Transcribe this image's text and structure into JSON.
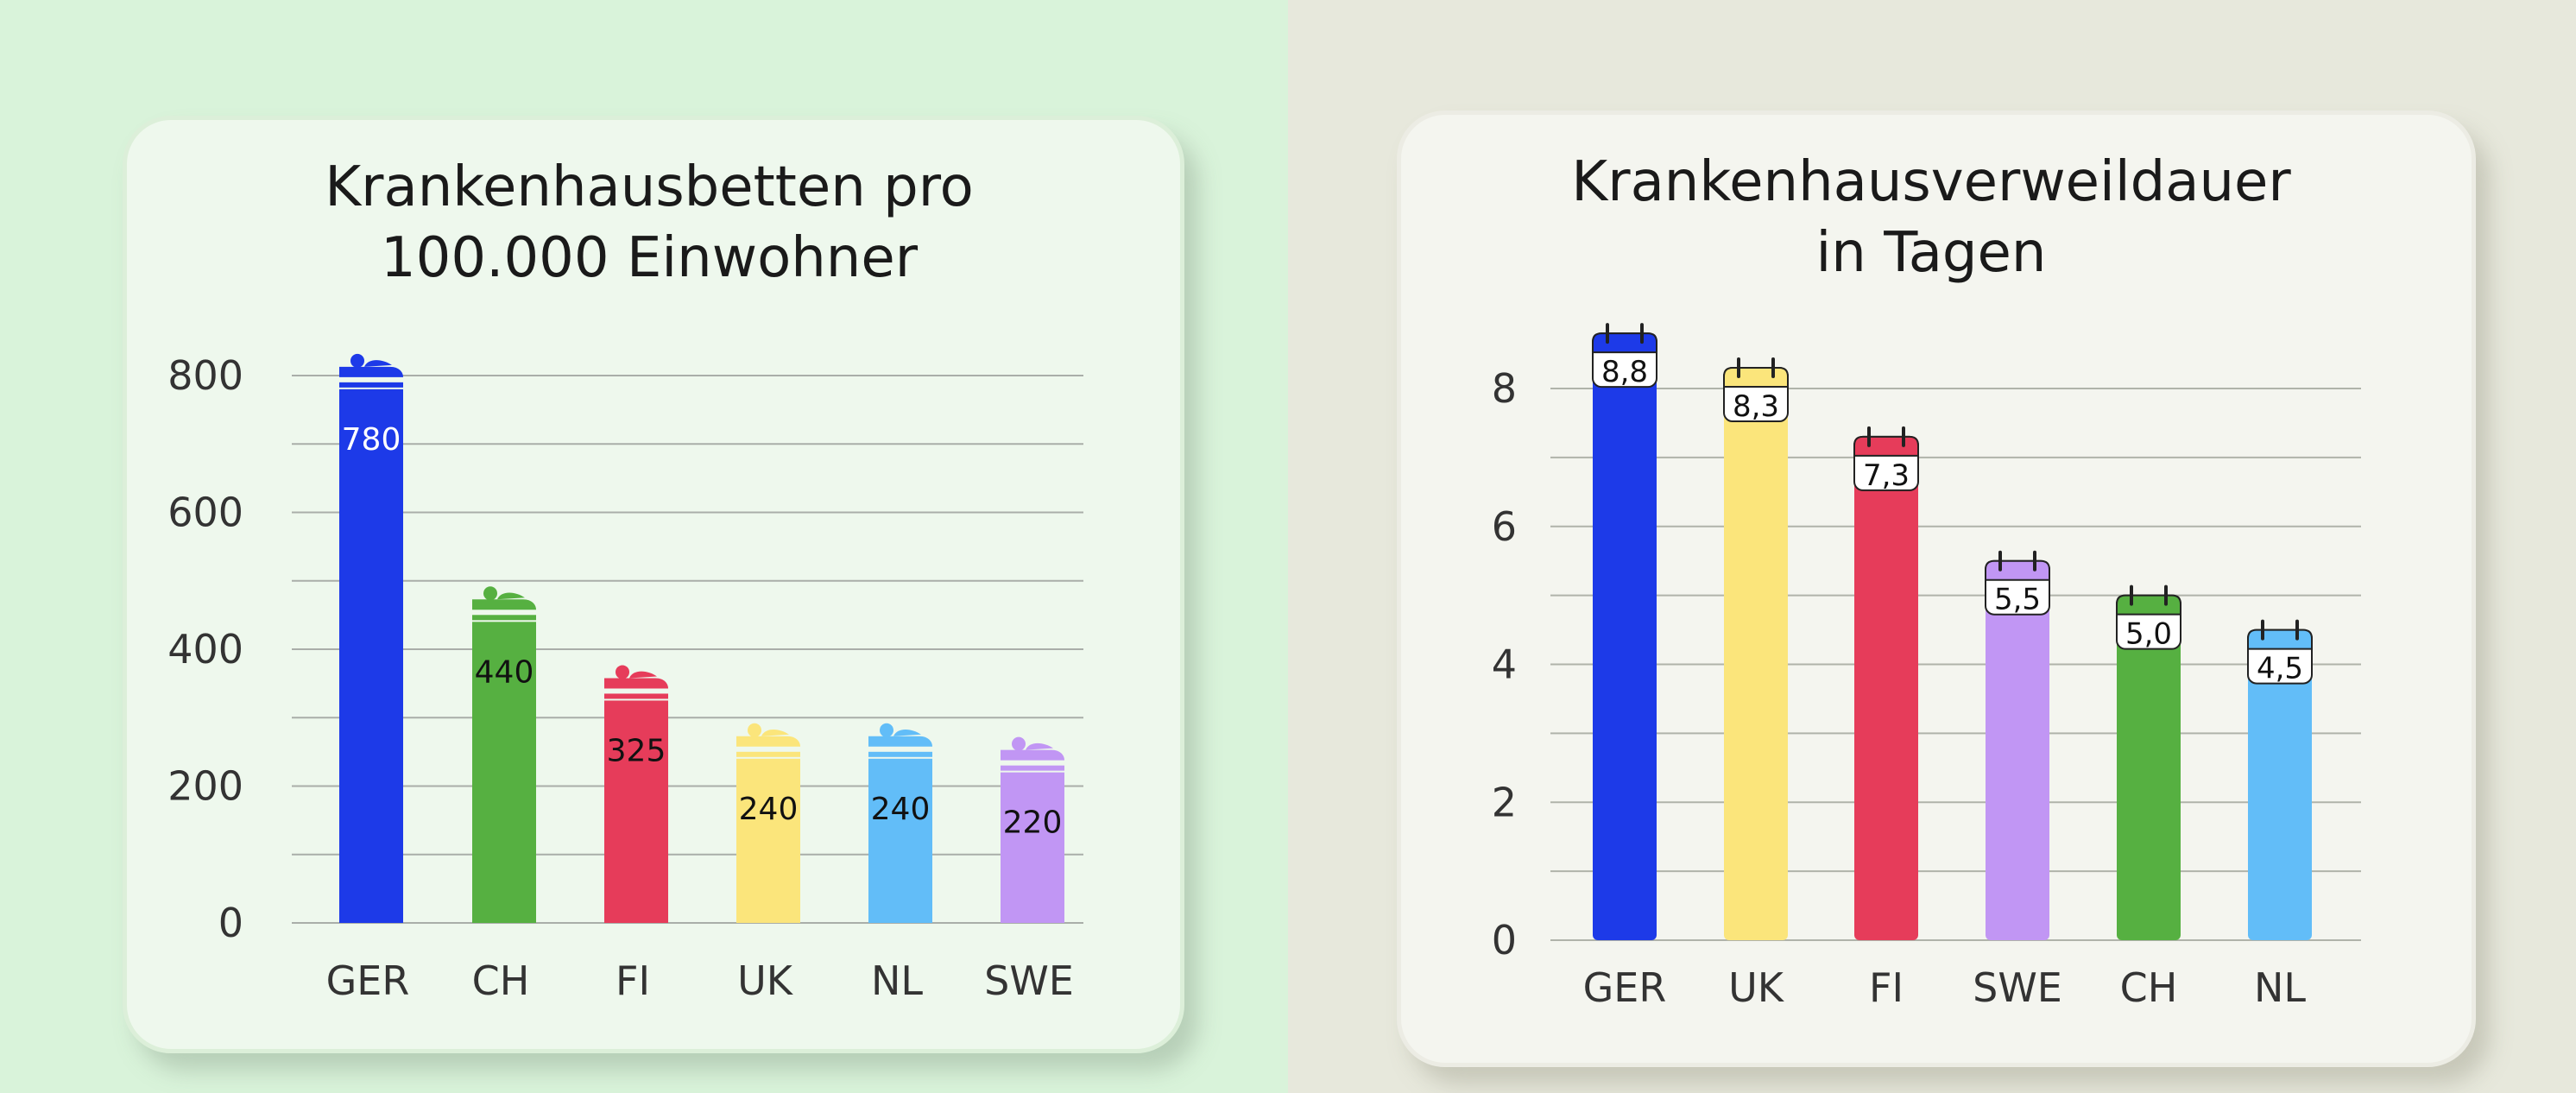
{
  "chart_data": [
    {
      "type": "bar",
      "title": [
        "Krankenhausbetten pro",
        "100.000 Einwohner"
      ],
      "categories": [
        "GER",
        "CH",
        "FI",
        "UK",
        "NL",
        "SWE"
      ],
      "values": [
        780,
        440,
        325,
        240,
        240,
        220
      ],
      "value_labels": [
        "780",
        "440",
        "325",
        "240",
        "240",
        "220"
      ],
      "colors": [
        "#1d3ae8",
        "#56b041",
        "#e63c5a",
        "#fbe57b",
        "#62bdf8",
        "#c196f4"
      ],
      "label_colors": [
        "#ffffff",
        "#111111",
        "#111111",
        "#111111",
        "#111111",
        "#111111"
      ],
      "yticks": [
        0,
        200,
        400,
        600,
        800
      ],
      "ylim": [
        0,
        800
      ],
      "grid": true,
      "icon": "bed-icon",
      "xlabel": "",
      "ylabel": ""
    },
    {
      "type": "bar",
      "title": [
        "Krankenhausverweildauer",
        "in Tagen"
      ],
      "categories": [
        "GER",
        "UK",
        "FI",
        "SWE",
        "CH",
        "NL"
      ],
      "values": [
        8.8,
        8.3,
        7.3,
        5.5,
        5.0,
        4.5
      ],
      "value_labels": [
        "8,8",
        "8,3",
        "7,3",
        "5,5",
        "5,0",
        "4,5"
      ],
      "colors": [
        "#1d3ae8",
        "#fbe57b",
        "#e63c5a",
        "#c196f4",
        "#56b041",
        "#62bdf8"
      ],
      "yticks": [
        0,
        2,
        4,
        6,
        8
      ],
      "ylim": [
        0,
        8
      ],
      "grid": true,
      "icon": "calendar-icon",
      "xlabel": "",
      "ylabel": ""
    }
  ]
}
